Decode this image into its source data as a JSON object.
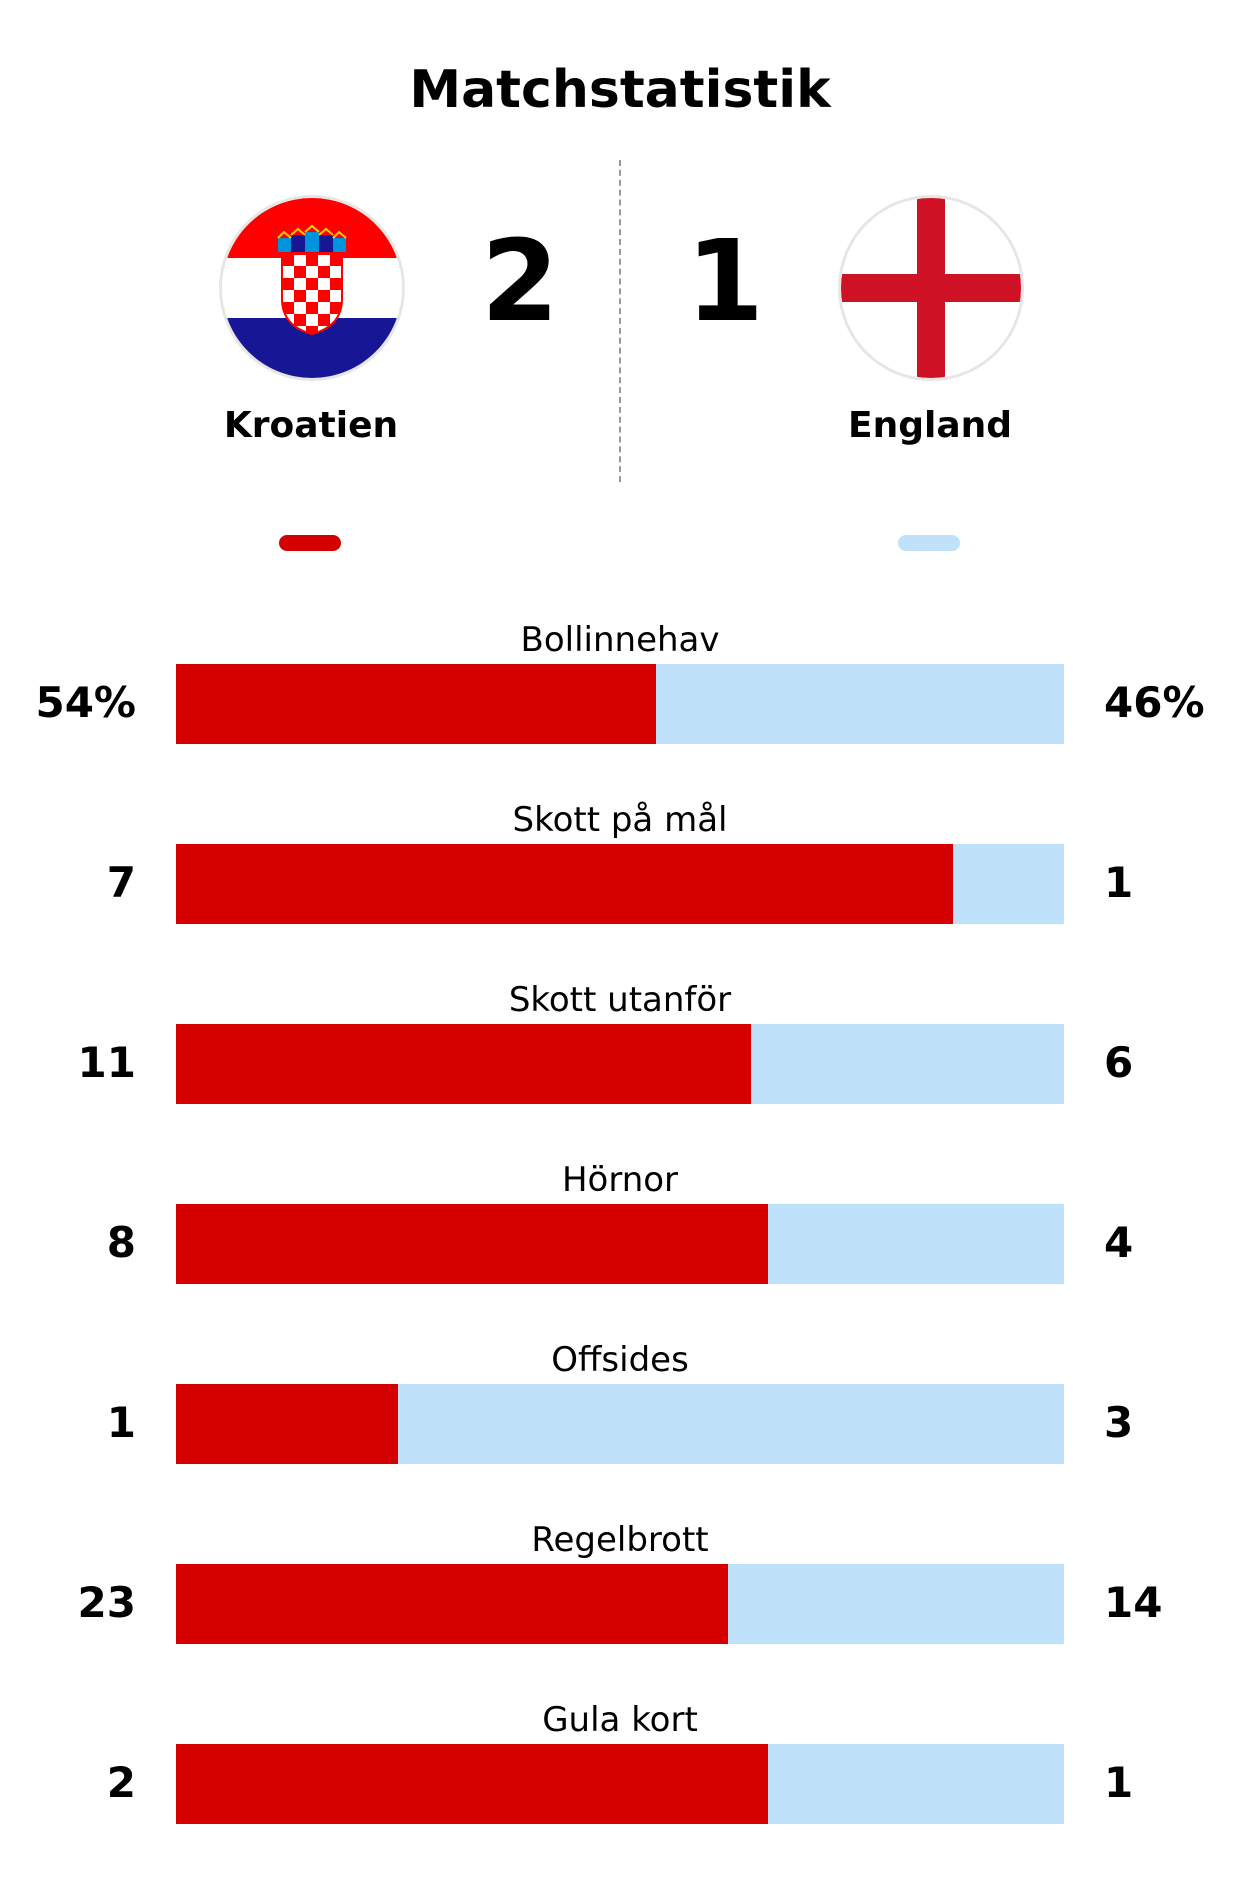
{
  "title": "Matchstatistik",
  "colors": {
    "home": "#d40000",
    "away": "#bfe1fa"
  },
  "home": {
    "name": "Kroatien",
    "score": "2",
    "flag": "croatia-flag-icon"
  },
  "away": {
    "name": "England",
    "score": "1",
    "flag": "england-flag-icon"
  },
  "stats": [
    {
      "label": "Bollinnehav",
      "home_display": "54%",
      "away_display": "46%",
      "home": 54,
      "away": 46
    },
    {
      "label": "Skott på mål",
      "home_display": "7",
      "away_display": "1",
      "home": 7,
      "away": 1
    },
    {
      "label": "Skott utanför",
      "home_display": "11",
      "away_display": "6",
      "home": 11,
      "away": 6
    },
    {
      "label": "Hörnor",
      "home_display": "8",
      "away_display": "4",
      "home": 8,
      "away": 4
    },
    {
      "label": "Offsides",
      "home_display": "1",
      "away_display": "3",
      "home": 1,
      "away": 3
    },
    {
      "label": "Regelbrott",
      "home_display": "23",
      "away_display": "14",
      "home": 23,
      "away": 14
    },
    {
      "label": "Gula kort",
      "home_display": "2",
      "away_display": "1",
      "home": 2,
      "away": 1
    }
  ]
}
